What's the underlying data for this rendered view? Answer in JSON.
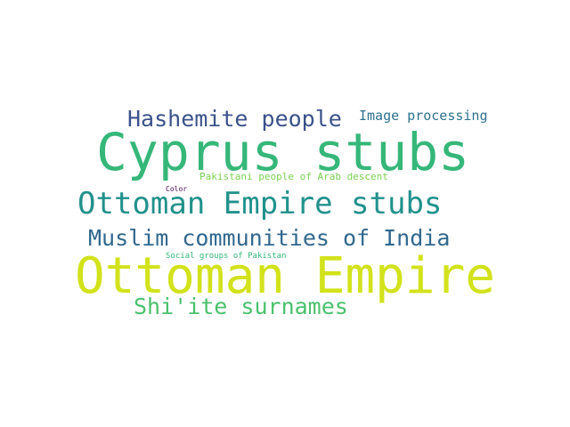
{
  "words": {
    "hashemite": {
      "text": "Hashemite people",
      "color": "#3b528b"
    },
    "image": {
      "text": "Image processing",
      "color": "#2c728e"
    },
    "cyprus": {
      "text": "Cyprus stubs",
      "color": "#35b779"
    },
    "pakistani": {
      "text": "Pakistani people of Arab descent",
      "color": "#7ad151"
    },
    "color": {
      "text": "Color",
      "color": "#440154"
    },
    "ottomanstub": {
      "text": "Ottoman Empire stubs",
      "color": "#21918c"
    },
    "muslim": {
      "text": "Muslim communities of India",
      "color": "#31688e"
    },
    "social": {
      "text": "Social groups of Pakistan",
      "color": "#35b779"
    },
    "ottoman": {
      "text": "Ottoman Empire",
      "color": "#d2e21b"
    },
    "shiite": {
      "text": "Shi'ite surnames",
      "color": "#4ac16d"
    }
  }
}
